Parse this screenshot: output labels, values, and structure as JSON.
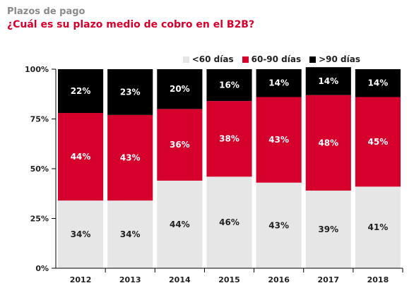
{
  "header": {
    "kicker": "Plazos de pago",
    "title": "¿Cuál es su plazo medio de cobro en el B2B?"
  },
  "colors": {
    "title": "#d6002c",
    "kicker": "#8a8a8a"
  },
  "chart_data": {
    "type": "bar",
    "stacked": true,
    "normalized": true,
    "categories": [
      "2012",
      "2013",
      "2014",
      "2015",
      "2016",
      "2017",
      "2018"
    ],
    "series": [
      {
        "name": "<60 días",
        "color": "#e6e6e6",
        "values": [
          34,
          34,
          44,
          46,
          43,
          39,
          41
        ]
      },
      {
        "name": "60-90 días",
        "color": "#d6002c",
        "values": [
          44,
          43,
          36,
          38,
          43,
          48,
          45
        ]
      },
      {
        "name": ">90 días",
        "color": "#000000",
        "values": [
          22,
          23,
          20,
          16,
          14,
          14,
          14
        ]
      }
    ],
    "value_labels": {
      "<60 días": [
        "34%",
        "34%",
        "44%",
        "46%",
        "43%",
        "39%",
        "41%"
      ],
      "60-90 días": [
        "44%",
        "43%",
        "36%",
        "38%",
        "43%",
        "48%",
        "45%"
      ],
      ">90 días": [
        "22%",
        "23%",
        "20%",
        "16%",
        "14%",
        "14%",
        "14%"
      ]
    },
    "yticks": [
      "0%",
      "25%",
      "50%",
      "75%",
      "100%"
    ],
    "ylim": [
      0,
      100
    ],
    "legend_position": "top-right",
    "grid": false
  }
}
